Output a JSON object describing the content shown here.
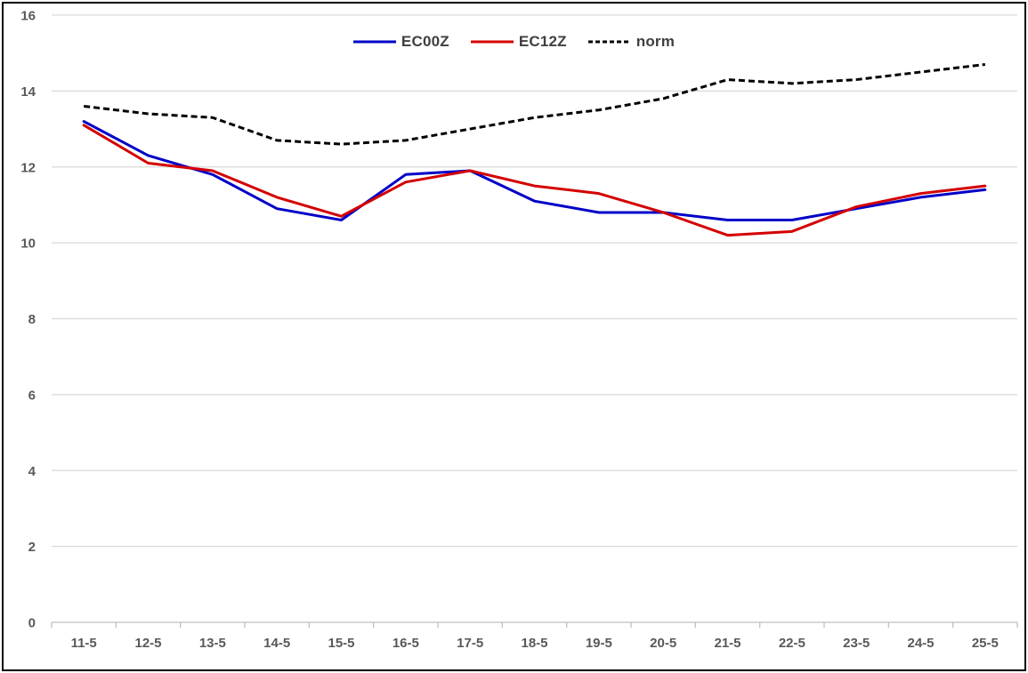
{
  "chart_data": {
    "type": "line",
    "title": "",
    "xlabel": "",
    "ylabel": "",
    "categories": [
      "11-5",
      "12-5",
      "13-5",
      "14-5",
      "15-5",
      "16-5",
      "17-5",
      "18-5",
      "19-5",
      "20-5",
      "21-5",
      "22-5",
      "23-5",
      "24-5",
      "25-5"
    ],
    "series": [
      {
        "name": "EC00Z",
        "color": "#0000C8",
        "dash": "solid",
        "values": [
          13.2,
          12.3,
          11.8,
          10.9,
          10.6,
          11.8,
          11.9,
          11.1,
          10.8,
          10.8,
          10.6,
          10.6,
          10.9,
          11.2,
          11.4
        ]
      },
      {
        "name": "EC12Z",
        "color": "#D40000",
        "dash": "solid",
        "values": [
          13.1,
          12.1,
          11.9,
          11.2,
          10.7,
          11.6,
          11.9,
          11.5,
          11.3,
          10.8,
          10.2,
          10.3,
          10.95,
          11.3,
          11.5
        ]
      },
      {
        "name": "norm",
        "color": "#000000",
        "dash": "dashed",
        "values": [
          13.6,
          13.4,
          13.3,
          12.7,
          12.6,
          12.7,
          13.0,
          13.3,
          13.5,
          13.8,
          14.3,
          14.2,
          14.3,
          14.5,
          14.7
        ]
      }
    ],
    "ylim": [
      0,
      16
    ],
    "yticks": [
      0,
      2,
      4,
      6,
      8,
      10,
      12,
      14,
      16
    ],
    "grid": true,
    "legend_position": "top-center"
  },
  "style_colors": {
    "axis_text": "#595959",
    "legend_text": "#404040",
    "gridline": "#D9D9D9",
    "axis_line": "#BFBFBF",
    "border": "#000000",
    "background": "#FFFFFF"
  }
}
